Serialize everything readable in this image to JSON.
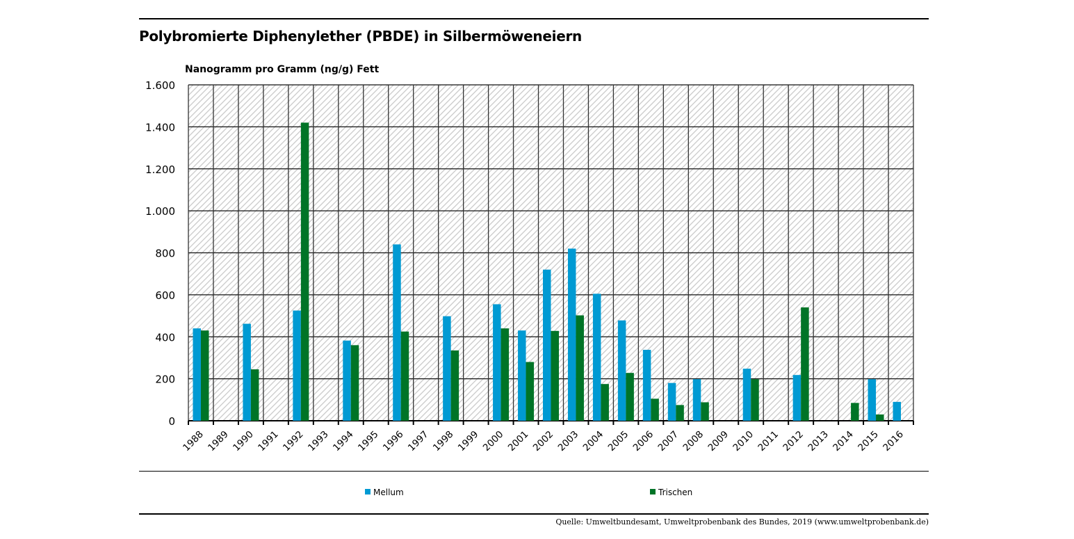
{
  "title": "Polybromierte Diphenylether (PBDE) in Silbermöweneiern",
  "source": "Quelle: Umweltbundesamt, Umweltprobenbank des Bundes, 2019 (www.umweltprobenbank.de)",
  "chart_data": {
    "type": "bar",
    "title": "Polybromierte Diphenylether (PBDE) in Silbermöweneiern",
    "ylabel": "Nanogramm pro Gramm (ng/g) Fett",
    "xlabel": "",
    "ylim": [
      0,
      1600
    ],
    "yticks": [
      0,
      200,
      400,
      600,
      800,
      1000,
      1200,
      1400,
      1600
    ],
    "ytick_labels": [
      "0",
      "200",
      "400",
      "600",
      "800",
      "1.000",
      "1.200",
      "1.400",
      "1.600"
    ],
    "grid": true,
    "legend_position": "bottom",
    "categories": [
      "1988",
      "1989",
      "1990",
      "1991",
      "1992",
      "1993",
      "1994",
      "1995",
      "1996",
      "1997",
      "1998",
      "1999",
      "2000",
      "2001",
      "2002",
      "2003",
      "2004",
      "2005",
      "2006",
      "2007",
      "2008",
      "2009",
      "2010",
      "2011",
      "2012",
      "2013",
      "2014",
      "2015",
      "2016"
    ],
    "series": [
      {
        "name": "Mellum",
        "color": "#009ad3",
        "values": [
          440,
          null,
          462,
          null,
          525,
          null,
          382,
          null,
          840,
          null,
          498,
          null,
          555,
          430,
          720,
          820,
          605,
          478,
          338,
          180,
          198,
          null,
          248,
          null,
          218,
          null,
          null,
          198,
          90
        ]
      },
      {
        "name": "Trischen",
        "color": "#007427",
        "values": [
          430,
          null,
          245,
          null,
          1420,
          null,
          360,
          null,
          425,
          null,
          335,
          null,
          440,
          280,
          428,
          502,
          175,
          228,
          105,
          75,
          88,
          null,
          198,
          null,
          540,
          null,
          85,
          30,
          null
        ]
      }
    ]
  }
}
